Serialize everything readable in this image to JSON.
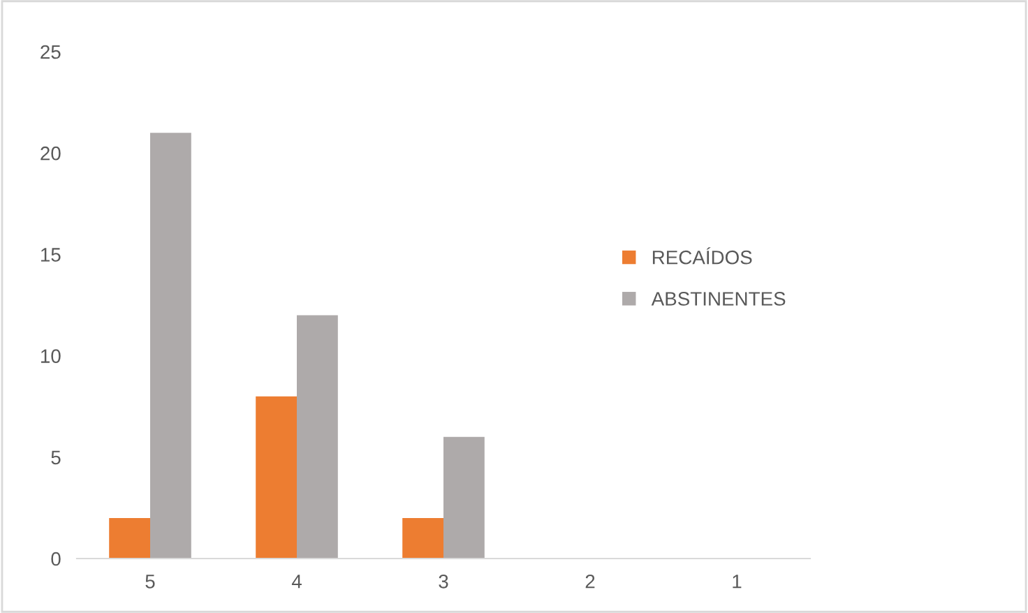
{
  "chart_data": {
    "type": "bar",
    "categories": [
      "5",
      "4",
      "3",
      "2",
      "1"
    ],
    "series": [
      {
        "name": "RECAÍDOS",
        "color": "#ed7d31",
        "values": [
          2,
          8,
          2,
          0,
          0
        ]
      },
      {
        "name": "ABSTINENTES",
        "color": "#aeaaaa",
        "values": [
          21,
          12,
          6,
          0,
          0
        ]
      }
    ],
    "ylim": [
      0,
      25
    ],
    "yticks": [
      0,
      5,
      10,
      15,
      20,
      25
    ],
    "grid": false,
    "legend": "right"
  }
}
